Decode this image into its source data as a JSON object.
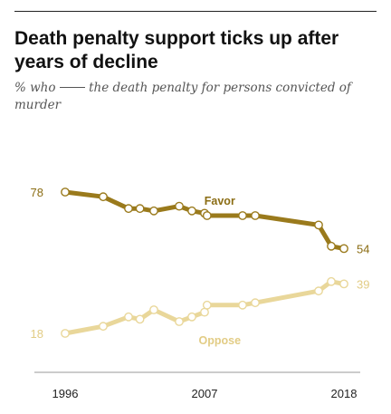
{
  "title": "Death penalty support ticks up after years of decline",
  "subtitle_before": "% who",
  "subtitle_after": "the death penalty for persons convicted of murder",
  "colors": {
    "favor": "#9a7a1c",
    "oppose": "#e9d79a",
    "favor_text": "#8b6d14",
    "oppose_text": "#e2cc85",
    "axis": "#555555"
  },
  "chart_data": {
    "type": "line",
    "x_tick_labels": [
      "1996",
      "2007",
      "2018"
    ],
    "x_ticks": [
      1996,
      2007,
      2018
    ],
    "xlim": [
      1996,
      2018
    ],
    "ylim": [
      18,
      78
    ],
    "series": [
      {
        "name": "Favor",
        "points": [
          [
            1996,
            78
          ],
          [
            1999,
            76
          ],
          [
            2001,
            71
          ],
          [
            2001.9,
            71
          ],
          [
            2003,
            70
          ],
          [
            2005,
            72
          ],
          [
            2006,
            70
          ],
          [
            2007,
            69
          ],
          [
            2007.2,
            68
          ],
          [
            2010,
            68
          ],
          [
            2011,
            68
          ],
          [
            2016,
            64
          ],
          [
            2017,
            55
          ],
          [
            2018,
            54
          ]
        ],
        "first_label": "78",
        "last_label": "54"
      },
      {
        "name": "Oppose",
        "points": [
          [
            1996,
            18
          ],
          [
            1999,
            21
          ],
          [
            2001,
            25
          ],
          [
            2001.9,
            24
          ],
          [
            2003,
            28
          ],
          [
            2005,
            23
          ],
          [
            2006,
            25
          ],
          [
            2007,
            27
          ],
          [
            2007.2,
            30
          ],
          [
            2010,
            30
          ],
          [
            2011,
            31
          ],
          [
            2016,
            36
          ],
          [
            2017,
            40
          ],
          [
            2018,
            39
          ]
        ],
        "first_label": "18",
        "last_label": "39"
      }
    ]
  }
}
